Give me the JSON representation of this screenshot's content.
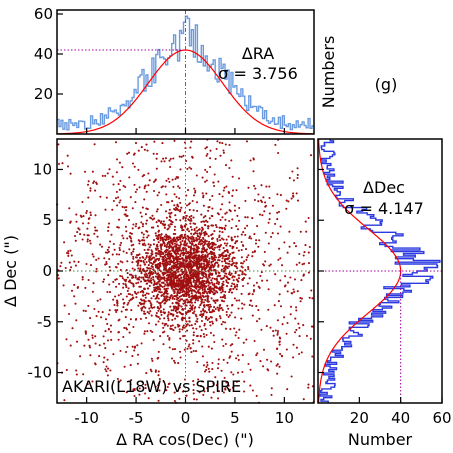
{
  "panel_label": "(g)",
  "chart_data": [
    {
      "id": "ra-histogram",
      "type": "line",
      "title": "",
      "ylabel": "Numbers",
      "xlim": [
        -13,
        13
      ],
      "ylim": [
        0,
        62
      ],
      "yticks": [
        20,
        40,
        60
      ],
      "annotation": {
        "name": "ΔRA",
        "sigma_text": "σ = 3.756",
        "sigma": 3.756,
        "peak": 42
      },
      "series": [
        {
          "name": "",
          "kind": "histogram",
          "color": "#6a9be0"
        },
        {
          "name": "",
          "kind": "gaussian-fit",
          "color": "#ff0000"
        }
      ],
      "peak_reference_line": {
        "y": 42,
        "color": "#a000a0",
        "style": "dotted"
      },
      "center_line": {
        "x": 0,
        "color": "#3a8a3a",
        "style": "dash-dot"
      }
    },
    {
      "id": "offset-scatter",
      "type": "scatter",
      "xlabel": "Δ RA cos(Dec) (\")",
      "ylabel": "Δ Dec (\")",
      "xlim": [
        -13,
        13
      ],
      "ylim": [
        -13,
        13
      ],
      "xticks": [
        -10,
        -5,
        0,
        5,
        10
      ],
      "yticks": [
        -10,
        -5,
        0,
        5,
        10
      ],
      "series": [
        {
          "name": "",
          "color": "#a01010",
          "n_points": 3600
        }
      ],
      "annotation": "AKARI(L18W) vs SPIRE",
      "crosshair": {
        "x": 0,
        "y": 0,
        "color": "#3a8a3a",
        "style": "dotted"
      }
    },
    {
      "id": "dec-histogram",
      "type": "line",
      "orientation": "horizontal",
      "xlabel": "Number",
      "xlim": [
        0,
        60
      ],
      "ylim": [
        -13,
        13
      ],
      "xticks": [
        20,
        40,
        60
      ],
      "annotation": {
        "name": "ΔDec",
        "sigma_text": "σ = 4.147",
        "sigma": 4.147,
        "peak": 40
      },
      "series": [
        {
          "name": "",
          "kind": "histogram",
          "color": "#2a3ae0"
        },
        {
          "name": "",
          "kind": "gaussian-fit",
          "color": "#ff0000"
        }
      ],
      "peak_reference_line": {
        "x": 40,
        "color": "#a000a0",
        "style": "dotted"
      },
      "center_line": {
        "y": 0,
        "color": "#a000a0",
        "style": "dotted"
      }
    }
  ]
}
